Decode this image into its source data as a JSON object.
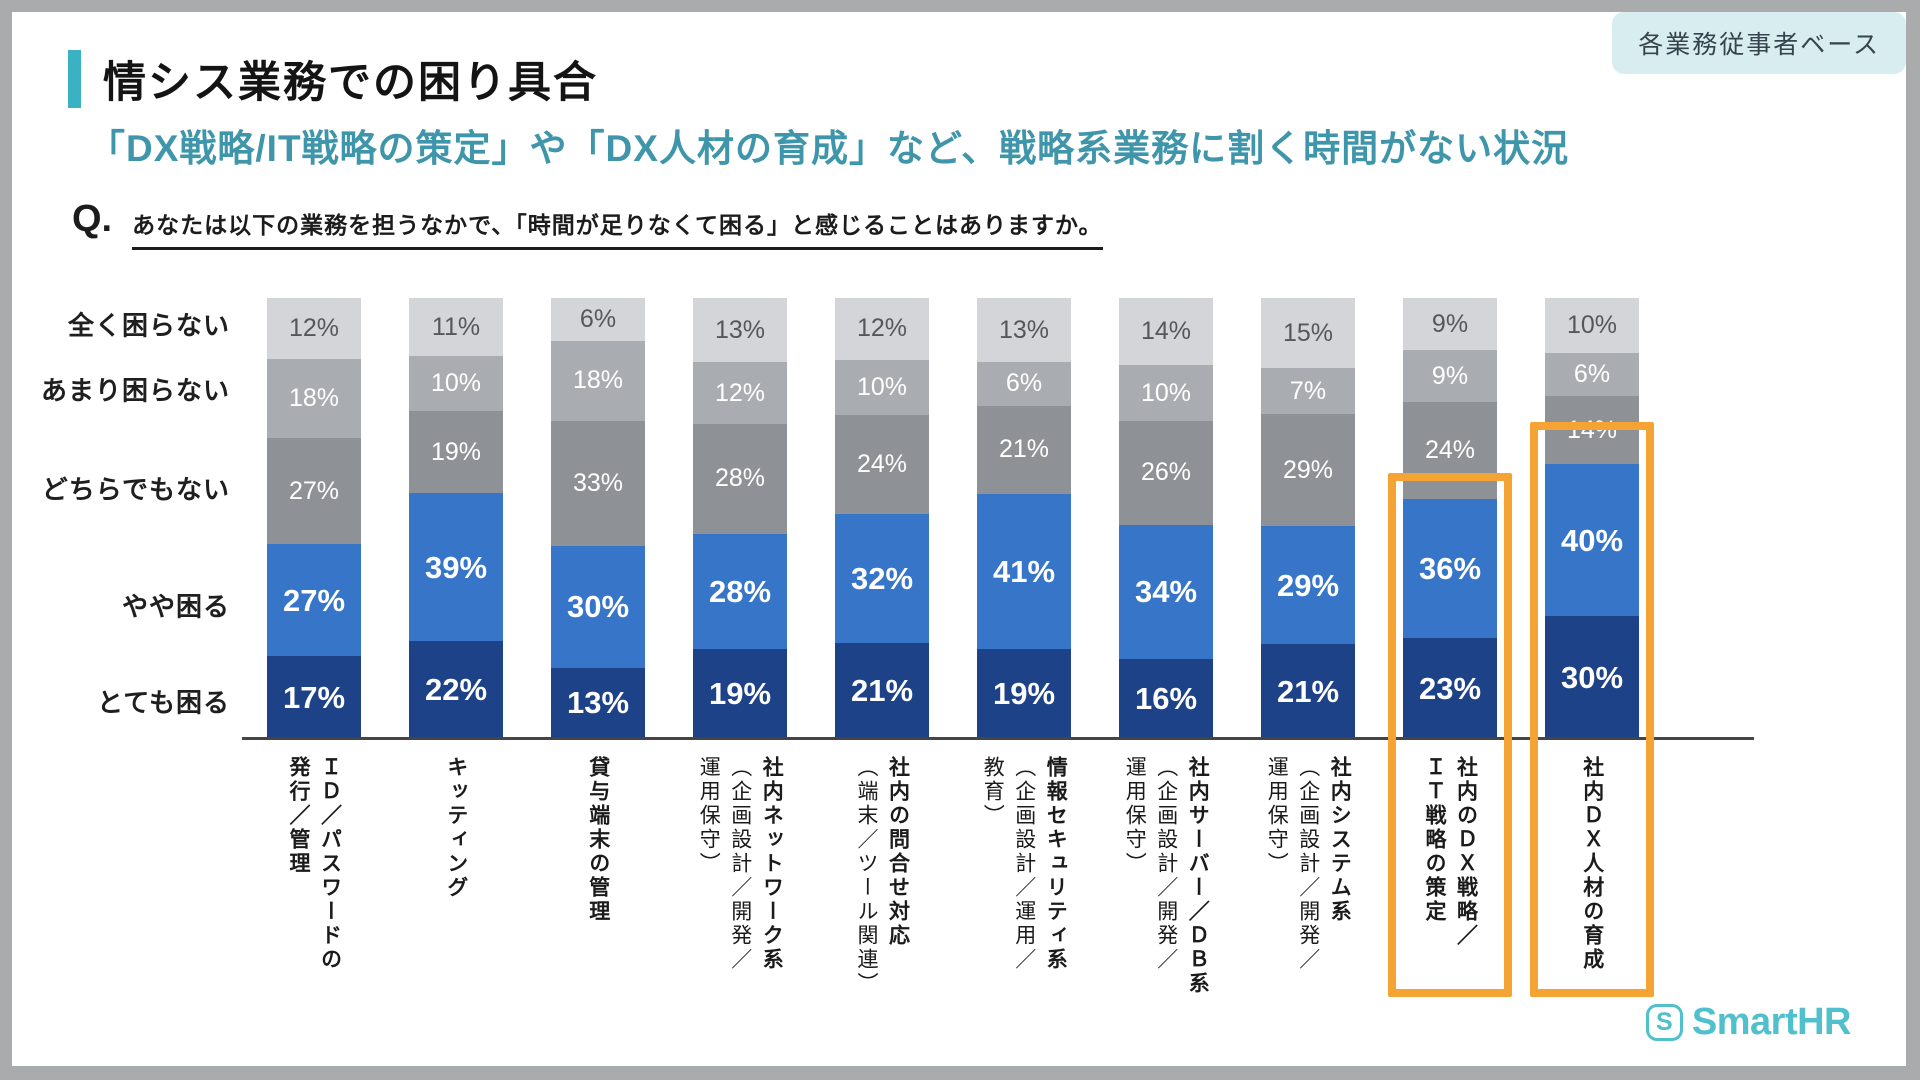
{
  "header": {
    "title": "情シス業務での困り具合",
    "badge": "各業務従事者ベース"
  },
  "subtitle": "「DX戦略/IT戦略の策定」や「DX人材の育成」など、戦略系業務に割く時間がない状況",
  "question": {
    "marker": "Q.",
    "text": "あなたは以下の業務を担うなかで、「時間が足りなくて困る」と感じることはありますか。"
  },
  "chart_data": {
    "type": "bar",
    "stacked": true,
    "unit": "%",
    "value_labels": "inside",
    "legend_position": "left-axis-rows",
    "grid": false,
    "categories": [
      "ＩＤ／パスワードの発行／管理",
      "キッティング",
      "貸与端末の管理",
      "社内ネットワーク系（企画設計／開発／運用保守）",
      "社内の問合せ対応（端末／ツール関連）",
      "情報セキュリティ系（企画設計／運用／教育）",
      "社内サーバー／ＤＢ系（企画設計／開発／運用保守）",
      "社内システム系（企画設計／開発／運用保守）",
      "社内のＤＸ戦略／ＩＴ戦略の策定",
      "社内ＤＸ人材の育成"
    ],
    "series": [
      {
        "name": "全く困らない",
        "color": "#d3d5d8",
        "values": [
          12,
          11,
          6,
          13,
          12,
          13,
          14,
          15,
          9,
          10
        ]
      },
      {
        "name": "あまり困らない",
        "color": "#a9acb0",
        "values": [
          18,
          10,
          18,
          12,
          10,
          6,
          10,
          7,
          9,
          6
        ]
      },
      {
        "name": "どちらでもない",
        "color": "#8e9195",
        "values": [
          27,
          19,
          33,
          28,
          24,
          21,
          26,
          29,
          24,
          14
        ]
      },
      {
        "name": "やや困る",
        "color": "#3675c8",
        "values": [
          27,
          39,
          30,
          28,
          32,
          41,
          34,
          29,
          36,
          40
        ]
      },
      {
        "name": "とても困る",
        "color": "#1e4287",
        "values": [
          17,
          22,
          13,
          19,
          21,
          19,
          16,
          21,
          23,
          30
        ]
      }
    ],
    "highlighted_categories": [
      8,
      9
    ],
    "highlight_color": "#f5a433"
  },
  "category_label_lines": [
    {
      "main": "ＩＤ／パスワードの\n発行／管理",
      "sub": ""
    },
    {
      "main": "キッティング",
      "sub": ""
    },
    {
      "main": "貸与端末の管理",
      "sub": ""
    },
    {
      "main": "社内ネットワーク系",
      "sub": "（企画設計／開発／\n運用保守）"
    },
    {
      "main": "社内の問合せ対応",
      "sub": "（端末／ツール関連）"
    },
    {
      "main": "情報セキュリティ系",
      "sub": "（企画設計／運用／\n教育）"
    },
    {
      "main": "社内サーバー／ＤＢ系",
      "sub": "（企画設計／開発／\n運用保守）"
    },
    {
      "main": "社内システム系",
      "sub": "（企画設計／開発／\n運用保守）"
    },
    {
      "main": "社内のＤＸ戦略／\nＩＴ戦略の策定",
      "sub": ""
    },
    {
      "main": "社内ＤＸ人材の育成",
      "sub": ""
    }
  ],
  "footer": {
    "logo_text": "SmartHR",
    "logo_icon_letter": "S"
  },
  "colors": {
    "accent_teal": "#3ab2c4",
    "subtitle_teal": "#3f96aa",
    "badge_bg": "#d8edf0",
    "logo_teal": "#4fc0cc",
    "baseline": "#454545",
    "frame_gray": "#a9abad"
  }
}
